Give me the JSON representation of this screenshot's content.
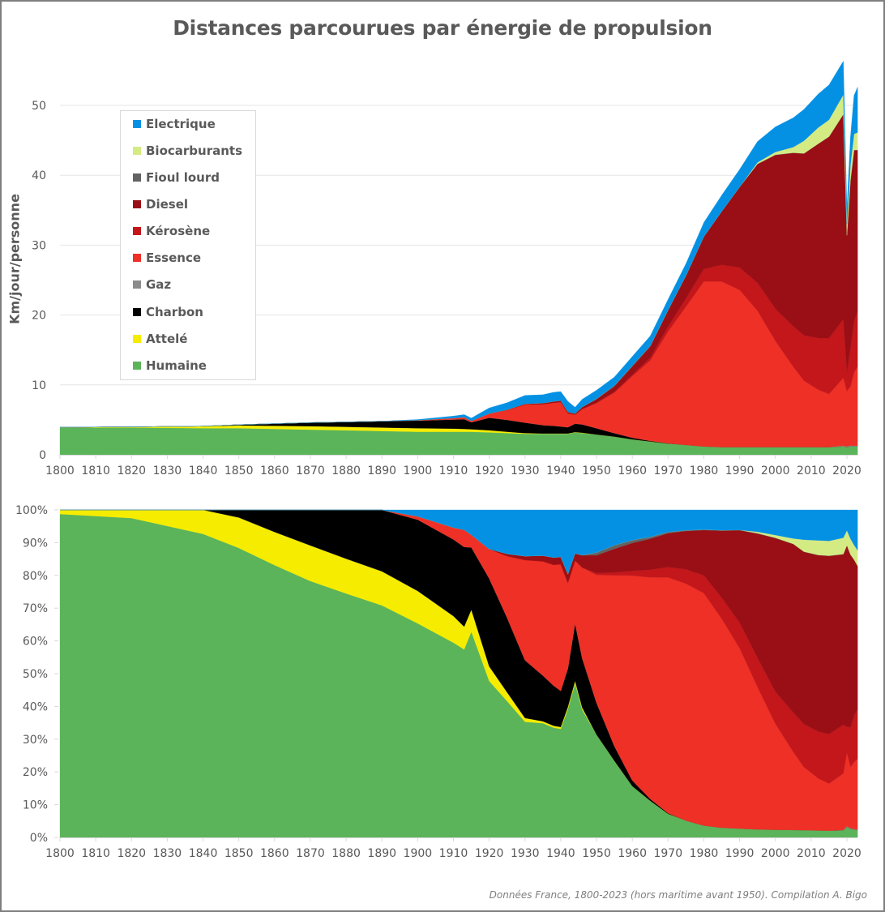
{
  "title": "Distances parcourues par énergie de propulsion",
  "footer": "Données France, 1800-2023 (hors maritime avant 1950). Compilation A. Bigo",
  "legend": [
    {
      "name": "Electrique",
      "color": "#0491e4"
    },
    {
      "name": "Biocarburants",
      "color": "#d4eb84"
    },
    {
      "name": "Fioul lourd",
      "color": "#636363"
    },
    {
      "name": "Diesel",
      "color": "#9a0f15"
    },
    {
      "name": "Kérosène",
      "color": "#c3171b"
    },
    {
      "name": "Essence",
      "color": "#ee3026"
    },
    {
      "name": "Gaz",
      "color": "#8c8c8c"
    },
    {
      "name": "Charbon",
      "color": "#000000"
    },
    {
      "name": "Attelé",
      "color": "#f5ec00"
    },
    {
      "name": "Humaine",
      "color": "#5bb45a"
    }
  ],
  "chart_data": [
    {
      "type": "area",
      "stacked": true,
      "title": "Distances parcourues par énergie de propulsion",
      "xlabel": "",
      "ylabel": "Km/jour/personne",
      "xlim": [
        1800,
        2023
      ],
      "ylim": [
        0,
        55
      ],
      "yticks": [
        "0",
        "10",
        "20",
        "30",
        "40",
        "50"
      ],
      "xticks": [
        "1800",
        "1810",
        "1820",
        "1830",
        "1840",
        "1850",
        "1860",
        "1870",
        "1880",
        "1890",
        "1900",
        "1910",
        "1920",
        "1930",
        "1940",
        "1950",
        "1960",
        "1970",
        "1980",
        "1990",
        "2000",
        "2010",
        "2020"
      ],
      "grid": true,
      "legend_position": "top-left",
      "x": [
        1800,
        1820,
        1840,
        1850,
        1860,
        1870,
        1880,
        1890,
        1900,
        1910,
        1913,
        1915,
        1920,
        1925,
        1930,
        1935,
        1938,
        1940,
        1942,
        1944,
        1946,
        1950,
        1955,
        1960,
        1965,
        1970,
        1975,
        1980,
        1985,
        1990,
        1995,
        2000,
        2005,
        2008,
        2012,
        2015,
        2019,
        2020,
        2021,
        2022,
        2023
      ],
      "series": [
        {
          "name": "Humaine",
          "values": [
            3.9,
            3.9,
            3.8,
            3.8,
            3.7,
            3.6,
            3.5,
            3.4,
            3.3,
            3.3,
            3.3,
            3.3,
            3.2,
            3.1,
            3.0,
            3.0,
            3.0,
            3.0,
            3.0,
            3.2,
            3.1,
            2.9,
            2.6,
            2.2,
            1.9,
            1.6,
            1.4,
            1.2,
            1.1,
            1.1,
            1.1,
            1.1,
            1.1,
            1.1,
            1.1,
            1.1,
            1.2,
            1.1,
            1.2,
            1.2,
            1.2
          ]
        },
        {
          "name": "Attelé",
          "values": [
            0.05,
            0.1,
            0.3,
            0.4,
            0.45,
            0.5,
            0.5,
            0.5,
            0.5,
            0.45,
            0.4,
            0.35,
            0.3,
            0.2,
            0.1,
            0.05,
            0.05,
            0.05,
            0.05,
            0.05,
            0.05,
            0,
            0,
            0,
            0,
            0,
            0,
            0,
            0,
            0,
            0,
            0,
            0,
            0,
            0,
            0,
            0,
            0,
            0,
            0,
            0
          ]
        },
        {
          "name": "Charbon",
          "values": [
            0,
            0,
            0,
            0.1,
            0.3,
            0.5,
            0.7,
            0.9,
            1.1,
            1.3,
            1.4,
            1.0,
            1.8,
            1.7,
            1.5,
            1.2,
            1.1,
            1.0,
            0.9,
            1.2,
            1.2,
            0.9,
            0.5,
            0.25,
            0.1,
            0.05,
            0,
            0,
            0,
            0,
            0,
            0,
            0,
            0,
            0,
            0,
            0,
            0,
            0,
            0,
            0
          ]
        },
        {
          "name": "Gaz",
          "values": [
            0,
            0,
            0,
            0,
            0,
            0,
            0,
            0,
            0,
            0,
            0,
            0,
            0,
            0,
            0,
            0,
            0,
            0,
            0,
            0,
            0,
            0,
            0,
            0,
            0,
            0,
            0,
            0,
            0,
            0,
            0,
            0,
            0,
            0,
            0,
            0,
            0.1,
            0.1,
            0.1,
            0.1,
            0.1
          ]
        },
        {
          "name": "Essence",
          "values": [
            0,
            0,
            0,
            0,
            0,
            0,
            0,
            0,
            0.05,
            0.2,
            0.3,
            0.2,
            0.6,
            1.4,
            2.6,
            3.0,
            3.3,
            3.5,
            2.0,
            1.3,
            2.2,
            3.6,
            5.8,
            8.8,
            11.5,
            16.0,
            19.8,
            23.6,
            23.7,
            22.5,
            19.5,
            15.2,
            11.5,
            9.5,
            8.2,
            7.6,
            9.7,
            7.9,
            8.5,
            10.5,
            11.3
          ]
        },
        {
          "name": "Kérosène",
          "values": [
            0,
            0,
            0,
            0,
            0,
            0,
            0,
            0,
            0,
            0,
            0,
            0,
            0,
            0,
            0,
            0,
            0,
            0,
            0,
            0,
            0,
            0.05,
            0.1,
            0.2,
            0.4,
            0.7,
            1.2,
            1.8,
            2.4,
            3.2,
            4.0,
            4.6,
            5.8,
            6.5,
            7.4,
            8.0,
            8.4,
            2.8,
            5.5,
            7.3,
            8.0
          ]
        },
        {
          "name": "Diesel",
          "values": [
            0,
            0,
            0,
            0,
            0,
            0,
            0,
            0,
            0,
            0,
            0,
            0,
            0,
            0.05,
            0.1,
            0.15,
            0.2,
            0.2,
            0.2,
            0.15,
            0.3,
            0.5,
            0.8,
            1.2,
            1.6,
            2.3,
            3.2,
            4.6,
            7.6,
            11.5,
            17.0,
            22.0,
            24.8,
            26.0,
            27.8,
            28.8,
            29.3,
            19.5,
            24.0,
            24.5,
            23.0
          ]
        },
        {
          "name": "Fioul lourd",
          "values": [
            0,
            0,
            0,
            0,
            0,
            0,
            0,
            0,
            0,
            0,
            0,
            0,
            0,
            0,
            0,
            0,
            0,
            0,
            0,
            0,
            0,
            0.08,
            0.12,
            0.12,
            0.1,
            0.08,
            0.06,
            0.05,
            0.05,
            0.04,
            0.04,
            0.03,
            0.03,
            0.03,
            0.03,
            0.03,
            0.03,
            0.02,
            0.02,
            0.02,
            0.02
          ]
        },
        {
          "name": "Biocarburants",
          "values": [
            0,
            0,
            0,
            0,
            0,
            0,
            0,
            0,
            0,
            0,
            0,
            0,
            0,
            0,
            0,
            0,
            0,
            0,
            0,
            0,
            0,
            0,
            0,
            0,
            0,
            0,
            0,
            0,
            0,
            0,
            0.2,
            0.4,
            0.8,
            1.8,
            2.3,
            2.4,
            2.8,
            1.6,
            2.2,
            2.3,
            2.5
          ]
        },
        {
          "name": "Electrique",
          "values": [
            0,
            0,
            0,
            0,
            0,
            0,
            0,
            0,
            0.1,
            0.3,
            0.35,
            0.4,
            0.8,
            1.0,
            1.2,
            1.2,
            1.3,
            1.3,
            1.5,
            0.9,
            1.1,
            1.2,
            1.2,
            1.3,
            1.4,
            1.5,
            1.7,
            2.0,
            2.3,
            2.5,
            3.0,
            3.6,
            4.2,
            4.5,
            4.8,
            5.0,
            4.8,
            2.2,
            4.0,
            5.5,
            6.5
          ]
        }
      ]
    },
    {
      "type": "area",
      "stacked": true,
      "normalized": true,
      "title": "",
      "xlabel": "",
      "ylabel": "",
      "xlim": [
        1800,
        2023
      ],
      "ylim": [
        0,
        100
      ],
      "yticks": [
        "0%",
        "10%",
        "20%",
        "30%",
        "40%",
        "50%",
        "60%",
        "70%",
        "80%",
        "90%",
        "100%"
      ],
      "xticks": [
        "1800",
        "1810",
        "1820",
        "1830",
        "1840",
        "1850",
        "1860",
        "1870",
        "1880",
        "1890",
        "1900",
        "1910",
        "1920",
        "1930",
        "1940",
        "1950",
        "1960",
        "1970",
        "1980",
        "1990",
        "2000",
        "2010",
        "2020"
      ],
      "grid": false,
      "source": "same series as chart 1, shown as share of total (%)"
    }
  ]
}
